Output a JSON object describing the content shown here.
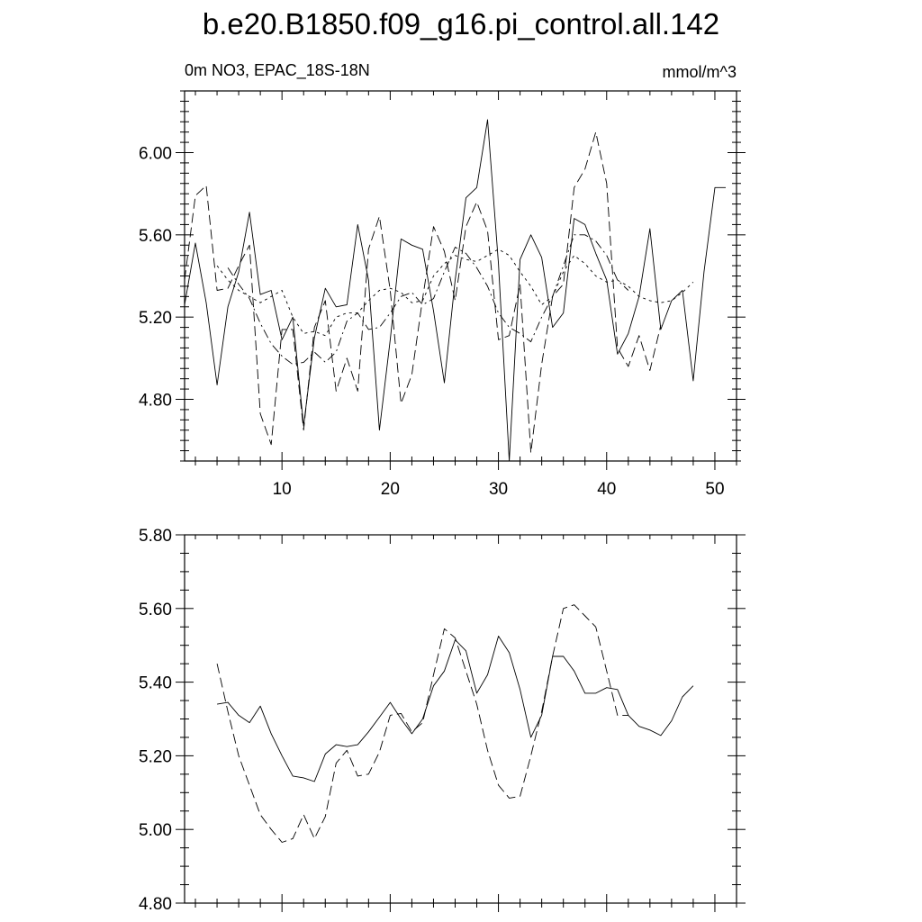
{
  "title": "b.e20.B1850.f09_g16.pi_control.all.142",
  "left_string": "0m NO3, EPAC_18S-18N",
  "right_string": "mmol/m^3",
  "chart_data": [
    {
      "type": "line",
      "xlim": [
        1,
        52
      ],
      "ylim": [
        4.5,
        6.3
      ],
      "x_ticks": [
        10,
        20,
        30,
        40,
        50
      ],
      "x_tick_labels": [
        "10",
        "20",
        "30",
        "40",
        "50"
      ],
      "y_ticks": [
        4.8,
        5.2,
        5.6,
        6.0
      ],
      "y_tick_labels": [
        "4.80",
        "5.20",
        "5.60",
        "6.00"
      ],
      "series": [
        {
          "style": "solid",
          "x": [
            1,
            2,
            3,
            4,
            5,
            6,
            7,
            8,
            9,
            10,
            11,
            12,
            13,
            14,
            15,
            16,
            17,
            18,
            19,
            20,
            21,
            22,
            23,
            24,
            25,
            26,
            27,
            28,
            29,
            30,
            31,
            32,
            33,
            34,
            35,
            36,
            37,
            38,
            39,
            40,
            41,
            42,
            43,
            44,
            45,
            46,
            47,
            48,
            49,
            50,
            51,
            52
          ],
          "values": [
            5.26,
            5.56,
            5.27,
            4.87,
            5.25,
            5.42,
            5.71,
            5.31,
            5.33,
            5.09,
            5.2,
            4.67,
            5.1,
            5.34,
            5.25,
            5.26,
            5.65,
            5.38,
            4.65,
            5.09,
            5.58,
            5.55,
            5.53,
            5.23,
            4.88,
            5.38,
            5.78,
            5.83,
            6.16,
            5.46,
            4.5,
            5.48,
            5.6,
            5.49,
            5.15,
            5.22,
            5.68,
            5.65,
            5.51,
            5.38,
            5.02,
            5.12,
            5.3,
            5.63,
            5.14,
            5.28,
            5.33,
            4.89,
            5.42,
            5.83,
            5.83,
            null
          ]
        },
        {
          "style": "dashed",
          "x": [
            1,
            2,
            3,
            4,
            5,
            6,
            7,
            8,
            9,
            10,
            11,
            12,
            13,
            14,
            15,
            16,
            17,
            18,
            19,
            20,
            21,
            22,
            23,
            24,
            25,
            26,
            27,
            28,
            29,
            30,
            31,
            32,
            33,
            34,
            35,
            36,
            37,
            38,
            39,
            40,
            41,
            42,
            43,
            44,
            45,
            46,
            47,
            48,
            49,
            50,
            51,
            52
          ],
          "values": [
            5.38,
            5.79,
            5.84,
            5.33,
            5.34,
            5.45,
            5.55,
            4.73,
            4.58,
            5.14,
            5.14,
            4.65,
            5.15,
            5.28,
            4.84,
            5.0,
            4.84,
            5.53,
            5.69,
            5.33,
            4.78,
            4.92,
            5.29,
            5.64,
            5.52,
            5.28,
            5.64,
            5.76,
            5.62,
            5.09,
            5.11,
            5.36,
            4.54,
            4.97,
            5.3,
            5.36,
            5.83,
            5.92,
            6.1,
            5.85,
            5.05,
            4.96,
            5.11,
            4.94,
            5.16,
            null,
            null,
            null,
            null,
            null,
            null,
            null
          ]
        },
        {
          "style": "dotted",
          "x": [
            4,
            5,
            6,
            7,
            8,
            9,
            10,
            11,
            12,
            13,
            14,
            15,
            16,
            17,
            18,
            19,
            20,
            21,
            22,
            23,
            24,
            25,
            26,
            27,
            28,
            29,
            30,
            31,
            32,
            33,
            34,
            35,
            36,
            37,
            38,
            39,
            40,
            41,
            42,
            43,
            44,
            45,
            46,
            47,
            48
          ],
          "values": [
            5.45,
            5.38,
            5.33,
            5.3,
            5.27,
            5.3,
            5.33,
            5.2,
            5.12,
            5.13,
            5.11,
            5.2,
            5.22,
            5.22,
            5.28,
            5.33,
            5.34,
            5.32,
            5.27,
            5.28,
            5.4,
            5.46,
            5.5,
            5.48,
            5.47,
            5.5,
            5.53,
            5.5,
            5.42,
            5.35,
            5.26,
            5.3,
            5.42,
            5.5,
            5.46,
            5.4,
            5.37,
            5.38,
            5.35,
            5.3,
            5.28,
            5.27,
            5.28,
            5.32,
            5.37
          ]
        },
        {
          "style": "dash-dot",
          "x": [
            5,
            6,
            7,
            8,
            9,
            10,
            11,
            12,
            13,
            14,
            15,
            16,
            17,
            18,
            19,
            20,
            21,
            22,
            23,
            24,
            25,
            26,
            27,
            28,
            29,
            30,
            31,
            32,
            33,
            34,
            35,
            36,
            37,
            38,
            39,
            40,
            41,
            42
          ],
          "values": [
            5.44,
            5.36,
            5.29,
            5.17,
            5.07,
            5.01,
            4.97,
            4.98,
            5.03,
            4.98,
            5.03,
            5.18,
            5.22,
            5.14,
            5.15,
            5.22,
            5.3,
            5.32,
            5.26,
            5.29,
            5.42,
            5.54,
            5.51,
            5.44,
            5.35,
            5.22,
            5.15,
            5.12,
            5.08,
            5.2,
            5.3,
            5.45,
            5.6,
            5.6,
            5.57,
            5.5,
            5.38,
            5.33
          ]
        }
      ]
    },
    {
      "type": "line",
      "xlim": [
        1,
        52
      ],
      "ylim": [
        4.8,
        5.8
      ],
      "x_ticks": [
        10,
        20,
        30,
        40,
        50
      ],
      "y_ticks": [
        4.8,
        5.0,
        5.2,
        5.4,
        5.6,
        5.8
      ],
      "y_tick_labels": [
        "4.80",
        "5.00",
        "5.20",
        "5.40",
        "5.60",
        "5.80"
      ],
      "series": [
        {
          "style": "solid",
          "x": [
            4,
            5,
            6,
            7,
            8,
            9,
            10,
            11,
            12,
            13,
            14,
            15,
            16,
            17,
            18,
            19,
            20,
            21,
            22,
            23,
            24,
            25,
            26,
            27,
            28,
            29,
            30,
            31,
            32,
            33,
            34,
            35,
            36,
            37,
            38,
            39,
            40,
            41,
            42,
            43,
            44,
            45,
            46,
            47,
            48
          ],
          "values": [
            5.34,
            5.345,
            5.31,
            5.29,
            5.335,
            5.26,
            5.2,
            5.145,
            5.14,
            5.13,
            5.205,
            5.23,
            5.225,
            5.23,
            5.265,
            5.305,
            5.345,
            5.3,
            5.26,
            5.3,
            5.39,
            5.43,
            5.515,
            5.485,
            5.37,
            5.42,
            5.525,
            5.48,
            5.38,
            5.25,
            5.31,
            5.47,
            5.47,
            5.43,
            5.37,
            5.37,
            5.385,
            5.38,
            5.31,
            5.28,
            5.27,
            5.255,
            5.295,
            5.36,
            5.39
          ]
        },
        {
          "style": "dashed",
          "x": [
            4,
            5,
            6,
            7,
            8,
            9,
            10,
            11,
            12,
            13,
            14,
            15,
            16,
            17,
            18,
            19,
            20,
            21,
            22,
            23,
            24,
            25,
            26,
            27,
            28,
            29,
            30,
            31,
            32,
            33,
            34,
            35,
            36,
            37,
            38,
            39,
            40,
            41,
            42
          ],
          "values": [
            5.45,
            5.32,
            5.2,
            5.12,
            5.04,
            5.0,
            4.965,
            4.975,
            5.04,
            4.975,
            5.035,
            5.18,
            5.215,
            5.145,
            5.15,
            5.21,
            5.31,
            5.315,
            5.265,
            5.29,
            5.42,
            5.545,
            5.52,
            5.43,
            5.34,
            5.215,
            5.12,
            5.085,
            5.09,
            5.2,
            5.32,
            5.47,
            5.6,
            5.61,
            5.58,
            5.55,
            5.43,
            5.31,
            5.31
          ]
        }
      ]
    }
  ]
}
